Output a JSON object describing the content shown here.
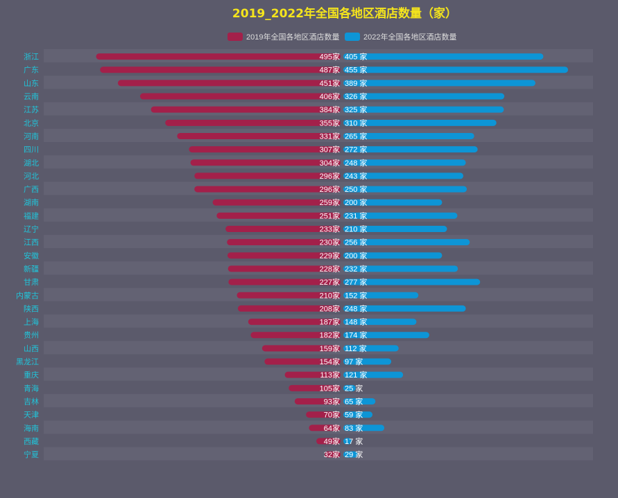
{
  "chart_data": {
    "type": "bar",
    "orientation": "horizontal-butterfly",
    "title": "2019_2022年全国各地区酒店数量（家）",
    "legend_position": "top-center",
    "unit_suffix_left": "家",
    "unit_suffix_right": " 家",
    "xlim": [
      0,
      500
    ],
    "grid": false,
    "categories": [
      "浙江",
      "广东",
      "山东",
      "云南",
      "江苏",
      "北京",
      "河南",
      "四川",
      "湖北",
      "河北",
      "广西",
      "湖南",
      "福建",
      "辽宁",
      "江西",
      "安徽",
      "新疆",
      "甘肃",
      "内蒙古",
      "陕西",
      "上海",
      "贵州",
      "山西",
      "黑龙江",
      "重庆",
      "青海",
      "吉林",
      "天津",
      "海南",
      "西藏",
      "宁夏"
    ],
    "series": [
      {
        "name": "2019年全国各地区酒店数量",
        "side": "left",
        "color": "#a3204a",
        "values": [
          495,
          487,
          451,
          406,
          384,
          355,
          331,
          307,
          304,
          296,
          296,
          259,
          251,
          233,
          230,
          229,
          228,
          227,
          210,
          208,
          187,
          182,
          159,
          154,
          113,
          105,
          93,
          70,
          64,
          49,
          32
        ]
      },
      {
        "name": "2022年全国各地区酒店数量",
        "side": "right",
        "color": "#0d95d6",
        "values": [
          405,
          455,
          389,
          326,
          325,
          310,
          265,
          272,
          248,
          243,
          250,
          200,
          231,
          210,
          256,
          200,
          232,
          277,
          152,
          248,
          148,
          174,
          112,
          97,
          121,
          25,
          65,
          59,
          83,
          17,
          29
        ]
      }
    ]
  },
  "colors": {
    "title": "#f5e51c",
    "category_label": "#21c4d9",
    "value_label": "#ffffff",
    "legend_text": "#dddddd",
    "row_band": "#636273"
  }
}
